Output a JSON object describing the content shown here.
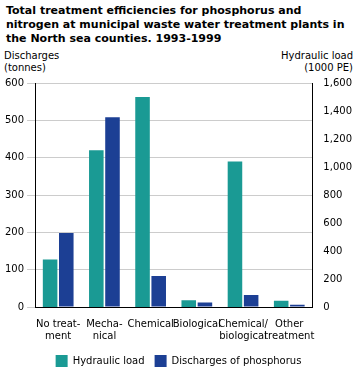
{
  "chart_data": {
    "type": "bar",
    "title": "Total treatment efficiencies for phosphorus and nitrogen at municipal waste water treatment plants in the North sea counties. 1993-1999",
    "y_label": "Discharges\n(tonnes)",
    "y2_label": "Hydraulic load\n(1000 PE)",
    "categories": [
      "No treat-\nment",
      "Mecha-\nnical",
      "Chemical",
      "Biological",
      "Chemical/\nbiological",
      "Other\ntreatment"
    ],
    "series": [
      {
        "name": "Hydraulic load",
        "color": "#1a9a94",
        "axis": "y2",
        "values": [
          340,
          1120,
          1500,
          48,
          1040,
          45
        ]
      },
      {
        "name": "Discharges of phosphorus",
        "color": "#1c3f94",
        "values": [
          198,
          508,
          83,
          12,
          32,
          6
        ]
      }
    ],
    "ylim": [
      0,
      600
    ],
    "yticks": [
      0,
      100,
      200,
      300,
      400,
      500,
      600
    ],
    "y2lim": [
      0,
      1600
    ],
    "y2ticks": [
      0,
      200,
      400,
      600,
      800,
      1000,
      1200,
      1400,
      1600
    ],
    "grid": true,
    "legend": "bottom"
  }
}
